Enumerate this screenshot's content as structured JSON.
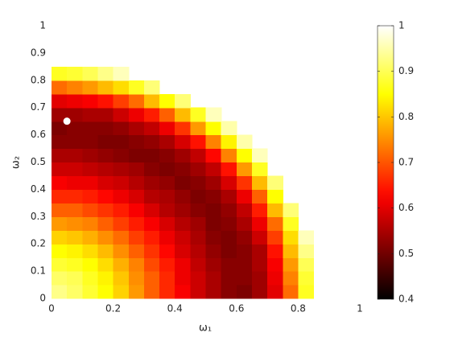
{
  "chart_data": {
    "type": "heatmap",
    "xlabel": "ω₁",
    "ylabel": "ω₂",
    "x": [
      0.025,
      0.075,
      0.125,
      0.175,
      0.225,
      0.275,
      0.325,
      0.375,
      0.425,
      0.475,
      0.525,
      0.575,
      0.625,
      0.675,
      0.725,
      0.775,
      0.825
    ],
    "y": [
      0.025,
      0.075,
      0.125,
      0.175,
      0.225,
      0.275,
      0.325,
      0.375,
      0.425,
      0.475,
      0.525,
      0.575,
      0.625,
      0.675,
      0.725,
      0.775,
      0.825
    ],
    "z": [
      [
        0.93,
        0.91,
        0.88,
        0.85,
        0.81,
        0.76,
        0.71,
        0.66,
        0.62,
        0.58,
        0.55,
        0.52,
        0.51,
        0.54,
        0.6,
        0.72,
        0.87
      ],
      [
        0.91,
        0.9,
        0.87,
        0.84,
        0.8,
        0.75,
        0.71,
        0.66,
        0.61,
        0.58,
        0.55,
        0.52,
        0.52,
        0.54,
        0.61,
        0.74,
        0.88
      ],
      [
        0.88,
        0.87,
        0.85,
        0.82,
        0.78,
        0.74,
        0.69,
        0.65,
        0.61,
        0.57,
        0.54,
        0.52,
        0.52,
        0.55,
        0.62,
        0.76,
        0.9
      ],
      [
        0.85,
        0.84,
        0.82,
        0.79,
        0.75,
        0.71,
        0.67,
        0.63,
        0.59,
        0.56,
        0.53,
        0.51,
        0.52,
        0.55,
        0.64,
        0.79,
        0.93
      ],
      [
        0.81,
        0.8,
        0.78,
        0.75,
        0.72,
        0.68,
        0.65,
        0.61,
        0.58,
        0.55,
        0.52,
        0.51,
        0.53,
        0.58,
        0.68,
        0.82,
        0.96
      ],
      [
        0.76,
        0.75,
        0.74,
        0.71,
        0.68,
        0.65,
        0.62,
        0.59,
        0.56,
        0.54,
        0.51,
        0.52,
        0.55,
        0.61,
        0.72,
        0.87,
        null
      ],
      [
        0.71,
        0.71,
        0.69,
        0.67,
        0.65,
        0.62,
        0.59,
        0.56,
        0.54,
        0.52,
        0.51,
        0.53,
        0.57,
        0.65,
        0.79,
        0.92,
        null
      ],
      [
        0.66,
        0.66,
        0.65,
        0.63,
        0.61,
        0.59,
        0.56,
        0.55,
        0.53,
        0.51,
        0.52,
        0.55,
        0.61,
        0.71,
        0.85,
        null,
        null
      ],
      [
        0.62,
        0.61,
        0.61,
        0.59,
        0.58,
        0.56,
        0.54,
        0.53,
        0.51,
        0.52,
        0.54,
        0.59,
        0.67,
        0.79,
        0.92,
        null,
        null
      ],
      [
        0.58,
        0.58,
        0.57,
        0.56,
        0.55,
        0.54,
        0.52,
        0.51,
        0.52,
        0.54,
        0.57,
        0.64,
        0.76,
        0.87,
        null,
        null,
        null
      ],
      [
        0.55,
        0.55,
        0.54,
        0.53,
        0.52,
        0.51,
        0.51,
        0.52,
        0.54,
        0.57,
        0.63,
        0.74,
        0.85,
        0.96,
        null,
        null,
        null
      ],
      [
        0.52,
        0.52,
        0.52,
        0.51,
        0.51,
        0.52,
        0.53,
        0.55,
        0.59,
        0.64,
        0.74,
        0.84,
        0.95,
        null,
        null,
        null,
        null
      ],
      [
        0.51,
        0.52,
        0.52,
        0.52,
        0.53,
        0.55,
        0.57,
        0.61,
        0.67,
        0.76,
        0.85,
        0.95,
        null,
        null,
        null,
        null,
        null
      ],
      [
        0.54,
        0.54,
        0.55,
        0.55,
        0.58,
        0.61,
        0.65,
        0.71,
        0.79,
        0.87,
        0.96,
        null,
        null,
        null,
        null,
        null,
        null
      ],
      [
        0.6,
        0.61,
        0.62,
        0.64,
        0.68,
        0.72,
        0.79,
        0.85,
        0.92,
        null,
        null,
        null,
        null,
        null,
        null,
        null,
        null
      ],
      [
        0.72,
        0.74,
        0.76,
        0.79,
        0.82,
        0.87,
        0.92,
        null,
        null,
        null,
        null,
        null,
        null,
        null,
        null,
        null,
        null
      ],
      [
        0.87,
        0.88,
        0.9,
        0.93,
        0.96,
        null,
        null,
        null,
        null,
        null,
        null,
        null,
        null,
        null,
        null,
        null,
        null
      ]
    ],
    "colormap": "hot",
    "clim": [
      0.4,
      1
    ],
    "cticks": [
      0.4,
      0.5,
      0.6,
      0.7,
      0.8,
      0.9,
      1
    ],
    "points": [
      {
        "x": 0.05,
        "y": 0.65,
        "color": "#ffffff"
      }
    ],
    "xlim": [
      0,
      1
    ],
    "ylim": [
      0,
      1
    ],
    "xticks": [
      0,
      0.2,
      0.4,
      0.6,
      0.8,
      1
    ],
    "yticks": [
      0,
      0.1,
      0.2,
      0.3,
      0.4,
      0.5,
      0.6,
      0.7,
      0.8,
      0.9,
      1
    ],
    "grid": false
  }
}
